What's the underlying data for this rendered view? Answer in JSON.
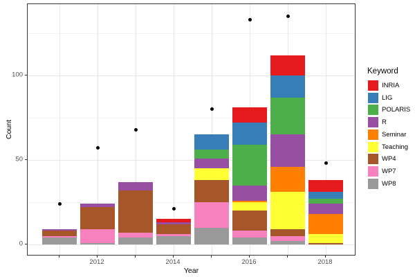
{
  "chart_data": {
    "type": "bar",
    "stacked": true,
    "title": "",
    "xlabel": "Year",
    "ylabel": "Count",
    "legend_title": "Keyword",
    "legend_position": "right",
    "grid": true,
    "x": [
      2011,
      2012,
      2013,
      2014,
      2015,
      2016,
      2017,
      2018
    ],
    "x_tick_labels": [
      "2012",
      "2014",
      "2016",
      "2018"
    ],
    "x_ticks_all_years": true,
    "y_tick_labels": [
      "0",
      "50",
      "100"
    ],
    "y_major_gridlines": [
      0,
      50,
      100
    ],
    "y_minor_gridlines": [
      25,
      75,
      125
    ],
    "ylim": [
      -7,
      143
    ],
    "series": [
      {
        "name": "INRIA",
        "color": "#E41A1C",
        "values": [
          0,
          0,
          0,
          2,
          0,
          9,
          12,
          7
        ]
      },
      {
        "name": "LIG",
        "color": "#377EB8",
        "values": [
          0,
          0,
          0,
          0,
          9,
          13,
          13,
          4
        ]
      },
      {
        "name": "POLARIS",
        "color": "#4DAF4A",
        "values": [
          0,
          0,
          0,
          0,
          5,
          24,
          22,
          3
        ]
      },
      {
        "name": "R",
        "color": "#984EA3",
        "values": [
          1,
          2,
          5,
          1,
          6,
          9,
          19,
          6
        ]
      },
      {
        "name": "Seminar",
        "color": "#FF7F00",
        "values": [
          0,
          0,
          0,
          0,
          0,
          1,
          15,
          12
        ]
      },
      {
        "name": "Teaching",
        "color": "#FFFF33",
        "values": [
          0,
          0,
          0,
          0,
          7,
          5,
          22,
          5
        ]
      },
      {
        "name": "WP4",
        "color": "#A65628",
        "values": [
          3,
          13,
          25,
          6,
          13,
          12,
          4,
          1
        ]
      },
      {
        "name": "WP7",
        "color": "#F781BF",
        "values": [
          1,
          8,
          3,
          1,
          15,
          4,
          3,
          0
        ]
      },
      {
        "name": "WP8",
        "color": "#999999",
        "values": [
          4,
          1,
          4,
          5,
          10,
          4,
          2,
          0
        ]
      }
    ],
    "bar_totals": [
      9,
      24,
      37,
      15,
      65,
      81,
      112,
      38
    ],
    "points_series": {
      "name": "black-dots",
      "color": "#000000",
      "values": [
        24,
        57,
        68,
        21,
        80,
        133,
        135,
        48
      ]
    }
  }
}
